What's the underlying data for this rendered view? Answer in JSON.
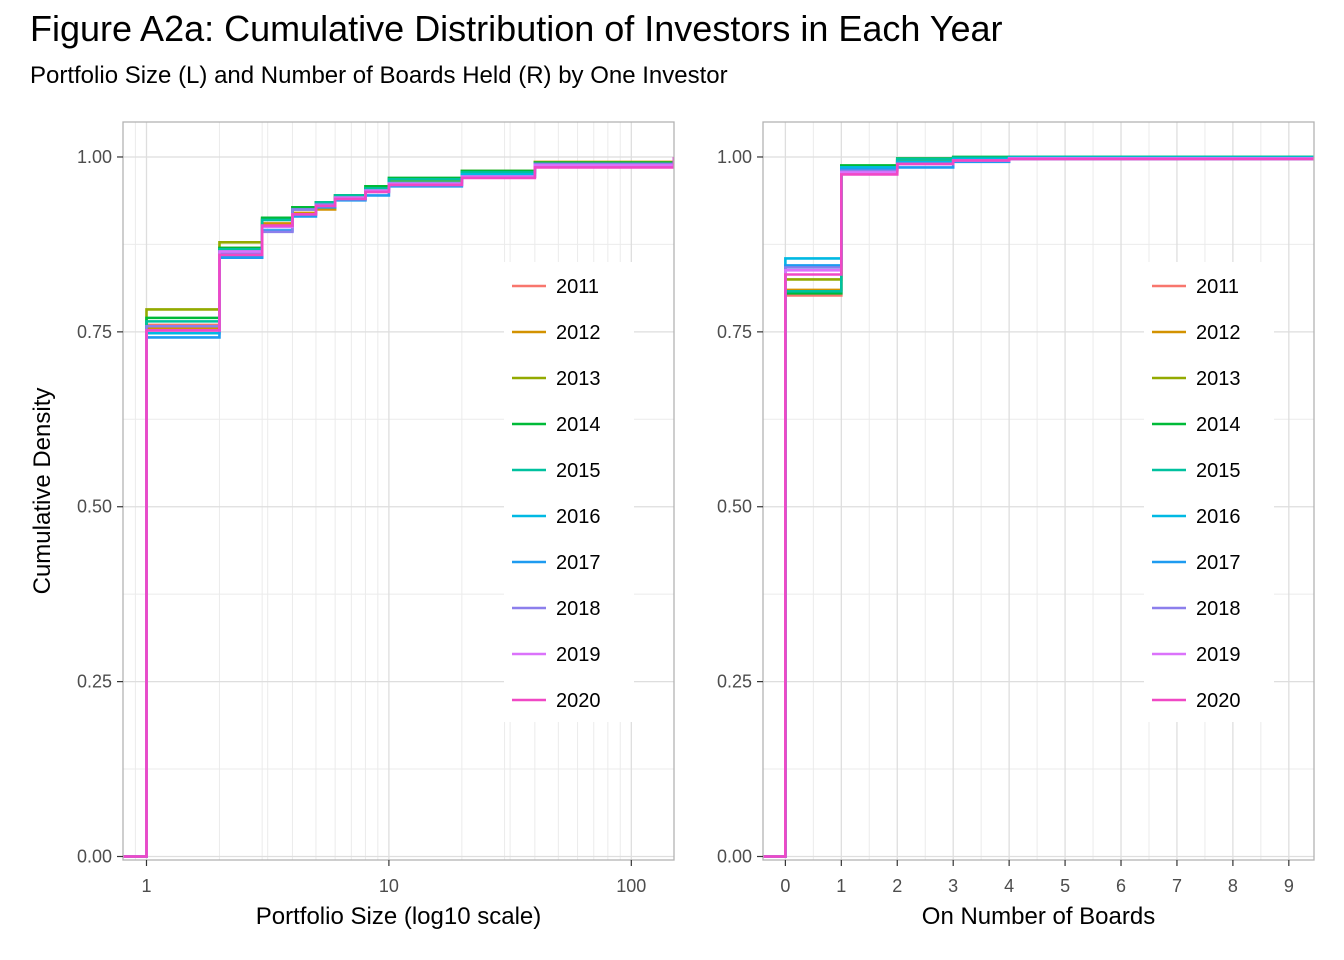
{
  "title": "Figure A2a: Cumulative Distribution of Investors in Each Year",
  "subtitle": "Portfolio Size (L) and Number of Boards Held (R) by One Investor",
  "series_colors": {
    "2011": "#F8766D",
    "2012": "#D39200",
    "2013": "#93AA00",
    "2014": "#00BA38",
    "2015": "#00C19F",
    "2016": "#00B9E3",
    "2017": "#1E9BF0",
    "2018": "#8C7FEC",
    "2019": "#DB72FB",
    "2020": "#F048C5"
  },
  "chart_data": [
    {
      "type": "line",
      "step": true,
      "xlabel": "Portfolio Size (log10 scale)",
      "ylabel": "Cumulative Density",
      "x_scale": "log10",
      "xlim": [
        0.8,
        150
      ],
      "ylim": [
        -0.005,
        1.05
      ],
      "x_ticks": [
        {
          "value": 1,
          "label": "1"
        },
        {
          "value": 10,
          "label": "10"
        },
        {
          "value": 100,
          "label": "100"
        }
      ],
      "y_ticks": [
        {
          "value": 0,
          "label": "0.00"
        },
        {
          "value": 0.25,
          "label": "0.25"
        },
        {
          "value": 0.5,
          "label": "0.50"
        },
        {
          "value": 0.75,
          "label": "0.75"
        },
        {
          "value": 1,
          "label": "1.00"
        }
      ],
      "grid": true,
      "legend_position": "right-inside",
      "series": [
        {
          "name": "2011",
          "x": [
            0.8,
            1,
            2,
            3,
            4,
            5,
            6,
            8,
            10,
            20,
            40,
            150
          ],
          "y": [
            0,
            0.76,
            0.87,
            0.91,
            0.925,
            0.935,
            0.945,
            0.955,
            0.965,
            0.978,
            0.99,
            1.0
          ]
        },
        {
          "name": "2012",
          "x": [
            0.8,
            1,
            2,
            3,
            4,
            5,
            6,
            8,
            10,
            20,
            40,
            150
          ],
          "y": [
            0,
            0.755,
            0.865,
            0.905,
            0.92,
            0.925,
            0.94,
            0.955,
            0.965,
            0.98,
            0.993,
            1.0
          ]
        },
        {
          "name": "2013",
          "x": [
            0.8,
            1,
            2,
            3,
            4,
            5,
            6,
            8,
            10,
            20,
            40,
            150
          ],
          "y": [
            0,
            0.782,
            0.878,
            0.912,
            0.928,
            0.935,
            0.945,
            0.955,
            0.965,
            0.978,
            0.99,
            1.0
          ]
        },
        {
          "name": "2014",
          "x": [
            0.8,
            1,
            2,
            3,
            4,
            5,
            6,
            8,
            10,
            20,
            40,
            150
          ],
          "y": [
            0,
            0.77,
            0.87,
            0.913,
            0.928,
            0.935,
            0.945,
            0.958,
            0.97,
            0.98,
            0.992,
            1.0
          ]
        },
        {
          "name": "2015",
          "x": [
            0.8,
            1,
            2,
            3,
            4,
            5,
            6,
            8,
            10,
            20,
            40,
            150
          ],
          "y": [
            0,
            0.765,
            0.868,
            0.91,
            0.925,
            0.935,
            0.945,
            0.955,
            0.968,
            0.978,
            0.99,
            1.0
          ]
        },
        {
          "name": "2016",
          "x": [
            0.8,
            1,
            2,
            3,
            4,
            5,
            6,
            8,
            10,
            20,
            40,
            150
          ],
          "y": [
            0,
            0.748,
            0.858,
            0.9,
            0.918,
            0.93,
            0.94,
            0.952,
            0.963,
            0.975,
            0.988,
            1.0
          ]
        },
        {
          "name": "2017",
          "x": [
            0.8,
            1,
            2,
            3,
            4,
            5,
            6,
            8,
            10,
            20,
            40,
            150
          ],
          "y": [
            0,
            0.742,
            0.856,
            0.895,
            0.915,
            0.928,
            0.938,
            0.945,
            0.958,
            0.972,
            0.988,
            1.0
          ]
        },
        {
          "name": "2018",
          "x": [
            0.8,
            1,
            2,
            3,
            4,
            5,
            6,
            8,
            10,
            20,
            40,
            150
          ],
          "y": [
            0,
            0.758,
            0.862,
            0.893,
            0.925,
            0.932,
            0.94,
            0.95,
            0.96,
            0.972,
            0.99,
            1.0
          ]
        },
        {
          "name": "2019",
          "x": [
            0.8,
            1,
            2,
            3,
            4,
            5,
            6,
            8,
            10,
            20,
            40,
            150
          ],
          "y": [
            0,
            0.752,
            0.865,
            0.9,
            0.918,
            0.93,
            0.942,
            0.952,
            0.962,
            0.972,
            0.988,
            1.0
          ]
        },
        {
          "name": "2020",
          "x": [
            0.8,
            1,
            2,
            3,
            4,
            5,
            6,
            8,
            10,
            20,
            40,
            150
          ],
          "y": [
            0,
            0.752,
            0.86,
            0.902,
            0.918,
            0.93,
            0.94,
            0.95,
            0.96,
            0.97,
            0.985,
            1.0
          ]
        }
      ]
    },
    {
      "type": "line",
      "step": true,
      "xlabel": "On Number of Boards",
      "ylabel": "",
      "x_scale": "linear",
      "xlim": [
        -0.4,
        9.45
      ],
      "ylim": [
        -0.005,
        1.05
      ],
      "x_ticks": [
        {
          "value": 0,
          "label": "0"
        },
        {
          "value": 1,
          "label": "1"
        },
        {
          "value": 2,
          "label": "2"
        },
        {
          "value": 3,
          "label": "3"
        },
        {
          "value": 4,
          "label": "4"
        },
        {
          "value": 5,
          "label": "5"
        },
        {
          "value": 6,
          "label": "6"
        },
        {
          "value": 7,
          "label": "7"
        },
        {
          "value": 8,
          "label": "8"
        },
        {
          "value": 9,
          "label": "9"
        }
      ],
      "y_ticks": [
        {
          "value": 0,
          "label": "0.00"
        },
        {
          "value": 0.25,
          "label": "0.25"
        },
        {
          "value": 0.5,
          "label": "0.50"
        },
        {
          "value": 0.75,
          "label": "0.75"
        },
        {
          "value": 1,
          "label": "1.00"
        }
      ],
      "grid": true,
      "legend_position": "right-inside",
      "series": [
        {
          "name": "2011",
          "x": [
            -0.4,
            0,
            1,
            2,
            3,
            4,
            9.45
          ],
          "y": [
            0,
            0.802,
            0.982,
            0.995,
            0.998,
            0.999,
            1.0
          ]
        },
        {
          "name": "2012",
          "x": [
            -0.4,
            0,
            1,
            2,
            3,
            4,
            9.45
          ],
          "y": [
            0,
            0.81,
            0.98,
            0.993,
            0.997,
            0.999,
            1.0
          ]
        },
        {
          "name": "2013",
          "x": [
            -0.4,
            0,
            1,
            2,
            3,
            4,
            9.45
          ],
          "y": [
            0,
            0.825,
            0.985,
            0.995,
            0.998,
            0.999,
            1.0
          ]
        },
        {
          "name": "2014",
          "x": [
            -0.4,
            0,
            1,
            2,
            3,
            4,
            9.45
          ],
          "y": [
            0,
            0.805,
            0.988,
            0.998,
            1.0,
            1.0,
            1.0
          ]
        },
        {
          "name": "2015",
          "x": [
            -0.4,
            0,
            1,
            2,
            3,
            4,
            9.45
          ],
          "y": [
            0,
            0.808,
            0.985,
            0.997,
            0.999,
            1.0,
            1.0
          ]
        },
        {
          "name": "2016",
          "x": [
            -0.4,
            0,
            1,
            2,
            3,
            4,
            9.45
          ],
          "y": [
            0,
            0.855,
            0.985,
            0.993,
            0.997,
            0.999,
            1.0
          ]
        },
        {
          "name": "2017",
          "x": [
            -0.4,
            0,
            1,
            2,
            3,
            4,
            9.45
          ],
          "y": [
            0,
            0.845,
            0.982,
            0.985,
            0.993,
            0.997,
            1.0
          ]
        },
        {
          "name": "2018",
          "x": [
            -0.4,
            0,
            1,
            2,
            3,
            4,
            9.45
          ],
          "y": [
            0,
            0.842,
            0.98,
            0.99,
            0.995,
            0.998,
            1.0
          ]
        },
        {
          "name": "2019",
          "x": [
            -0.4,
            0,
            1,
            2,
            3,
            4,
            9.45
          ],
          "y": [
            0,
            0.838,
            0.978,
            0.99,
            0.995,
            0.998,
            1.0
          ]
        },
        {
          "name": "2020",
          "x": [
            -0.4,
            0,
            1,
            2,
            3,
            4,
            9.45
          ],
          "y": [
            0,
            0.832,
            0.975,
            0.99,
            0.995,
            0.997,
            1.0
          ]
        }
      ]
    }
  ]
}
